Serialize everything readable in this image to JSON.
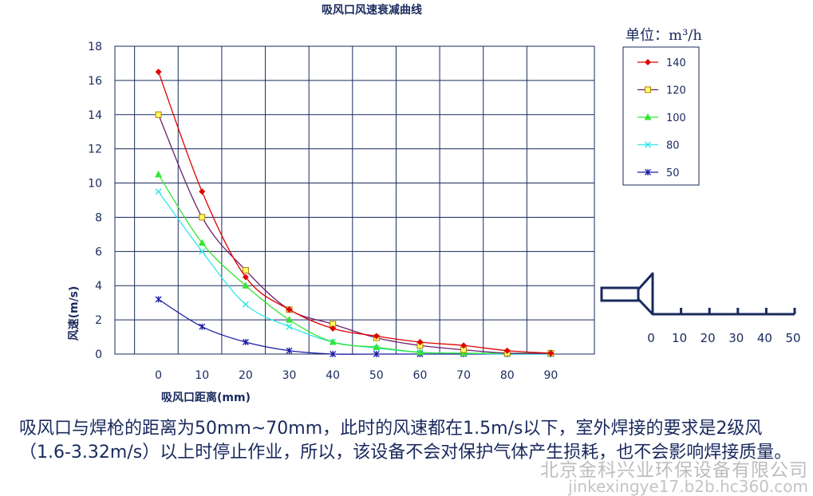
{
  "chart_data": {
    "type": "line",
    "title": "吸风口风速衰减曲线",
    "xlabel": "吸风口距离(mm)",
    "ylabel": "风速(m/s)",
    "x": [
      0,
      10,
      20,
      30,
      40,
      50,
      60,
      70,
      80,
      90
    ],
    "xlim": [
      -10,
      100
    ],
    "ylim": [
      0,
      18
    ],
    "x_ticks": [
      "0",
      "10",
      "20",
      "30",
      "40",
      "50",
      "60",
      "70",
      "80",
      "90"
    ],
    "y_ticks": [
      "0",
      "2",
      "4",
      "6",
      "8",
      "10",
      "12",
      "14",
      "16",
      "18"
    ],
    "grid": true,
    "legend_position": "right",
    "legend_title": "单位：m³/h",
    "series": [
      {
        "name": "140",
        "color": "#e00000",
        "marker": "diamond",
        "values": [
          16.5,
          9.5,
          4.5,
          2.6,
          1.5,
          1.05,
          0.7,
          0.5,
          0.2,
          0.05
        ]
      },
      {
        "name": "120",
        "color": "#6a1f6e",
        "marker": "square",
        "values": [
          14.0,
          8.0,
          4.9,
          2.6,
          1.75,
          0.95,
          0.5,
          0.25,
          0.05,
          0.05
        ]
      },
      {
        "name": "100",
        "color": "#33e633",
        "marker": "triangle",
        "values": [
          10.5,
          6.5,
          4.0,
          2.0,
          0.7,
          0.4,
          0.1,
          0.05,
          0.05,
          0.05
        ]
      },
      {
        "name": "80",
        "color": "#33e6e6",
        "marker": "x",
        "values": [
          9.5,
          6.0,
          2.9,
          1.6,
          0.7,
          0.35,
          0.1,
          0.05,
          0.0,
          0.0
        ]
      },
      {
        "name": "50",
        "color": "#1a1aa6",
        "marker": "star",
        "values": [
          3.2,
          1.6,
          0.7,
          0.2,
          0.0,
          0.0,
          0.0,
          0.0,
          0.0,
          0.0
        ]
      }
    ]
  },
  "nozzle_scale": {
    "ticks": [
      "0",
      "10",
      "20",
      "30",
      "40",
      "50"
    ]
  },
  "note": "吸风口与焊枪的距离为50mm~70mm，此时的风速都在1.5m/s以下，室外焊接的要求是2级风（1.6-3.32m/s）以上时停止作业，所以，该设备不会对保护气体产生损耗，也不会影响焊接质量。",
  "watermark": {
    "company": "北京金科兴业环保设备有限公司",
    "url": "jinkexingye17.b2b.hc360.com"
  }
}
